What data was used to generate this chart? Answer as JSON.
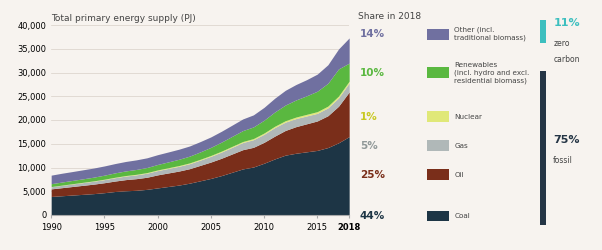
{
  "years": [
    1990,
    1991,
    1992,
    1993,
    1994,
    1995,
    1996,
    1997,
    1998,
    1999,
    2000,
    2001,
    2002,
    2003,
    2004,
    2005,
    2006,
    2007,
    2008,
    2009,
    2010,
    2011,
    2012,
    2013,
    2014,
    2015,
    2016,
    2017,
    2018
  ],
  "coal": [
    3900,
    4050,
    4200,
    4350,
    4500,
    4700,
    4950,
    5100,
    5200,
    5400,
    5700,
    6000,
    6300,
    6700,
    7200,
    7700,
    8300,
    9000,
    9700,
    10100,
    10900,
    11800,
    12600,
    13000,
    13300,
    13600,
    14200,
    15200,
    16500
  ],
  "oil": [
    1600,
    1700,
    1800,
    1900,
    2000,
    2100,
    2200,
    2350,
    2450,
    2550,
    2750,
    2850,
    2950,
    3050,
    3250,
    3450,
    3650,
    3850,
    4050,
    4150,
    4400,
    4800,
    5200,
    5600,
    5900,
    6200,
    6700,
    7700,
    9400
  ],
  "gas": [
    450,
    490,
    530,
    570,
    610,
    650,
    700,
    750,
    800,
    850,
    900,
    950,
    1000,
    1050,
    1100,
    1200,
    1300,
    1400,
    1500,
    1600,
    1700,
    1800,
    1750,
    1700,
    1650,
    1600,
    1650,
    1750,
    1900
  ],
  "nuclear": [
    40,
    50,
    60,
    70,
    80,
    90,
    100,
    110,
    120,
    130,
    140,
    150,
    160,
    170,
    180,
    190,
    200,
    210,
    220,
    240,
    260,
    280,
    300,
    320,
    340,
    360,
    380,
    400,
    380
  ],
  "renewables": [
    600,
    650,
    690,
    730,
    780,
    850,
    920,
    970,
    1020,
    1070,
    1150,
    1230,
    1320,
    1420,
    1550,
    1700,
    1900,
    2100,
    2300,
    2450,
    2700,
    3000,
    3300,
    3600,
    3900,
    4300,
    4800,
    5700,
    3800
  ],
  "other": [
    1800,
    1850,
    1870,
    1900,
    1920,
    1940,
    1960,
    1990,
    2020,
    2040,
    2060,
    2090,
    2120,
    2140,
    2170,
    2200,
    2280,
    2360,
    2450,
    2540,
    2700,
    2900,
    3100,
    3250,
    3400,
    3600,
    3900,
    4200,
    5300
  ],
  "colors": {
    "coal": "#1d3545",
    "oil": "#7a2e1a",
    "gas": "#b0b8b8",
    "nuclear": "#e0e878",
    "renewables": "#5ab840",
    "other": "#7070a0"
  },
  "title": "Total primary energy supply (PJ)",
  "legend_title": "Share in 2018",
  "legend_items": [
    {
      "label": "14%",
      "sublabel": "Other (incl.\ntraditional biomass)",
      "color": "#7070a0",
      "label_color": "#7070a0"
    },
    {
      "label": "10%",
      "sublabel": "Renewables\n(incl. hydro and excl.\nresidential biomass)",
      "color": "#5ab840",
      "label_color": "#5ab840"
    },
    {
      "label": "1%",
      "sublabel": "Nuclear",
      "color": "#e0e878",
      "label_color": "#c8c820"
    },
    {
      "label": "5%",
      "sublabel": "Gas",
      "color": "#b0b8b8",
      "label_color": "#909898"
    },
    {
      "label": "25%",
      "sublabel": "Oil",
      "color": "#7a2e1a",
      "label_color": "#7a2e1a"
    },
    {
      "label": "44%",
      "sublabel": "Coal",
      "color": "#1d3545",
      "label_color": "#1d3545"
    }
  ],
  "zero_carbon_pct": "11%",
  "fossil_pct": "75%",
  "zero_carbon_color": "#3dbfbf",
  "fossil_color": "#253545",
  "ylim": [
    0,
    40000
  ],
  "yticks": [
    0,
    5000,
    10000,
    15000,
    20000,
    25000,
    30000,
    35000,
    40000
  ],
  "bg_color": "#f7f3ef"
}
